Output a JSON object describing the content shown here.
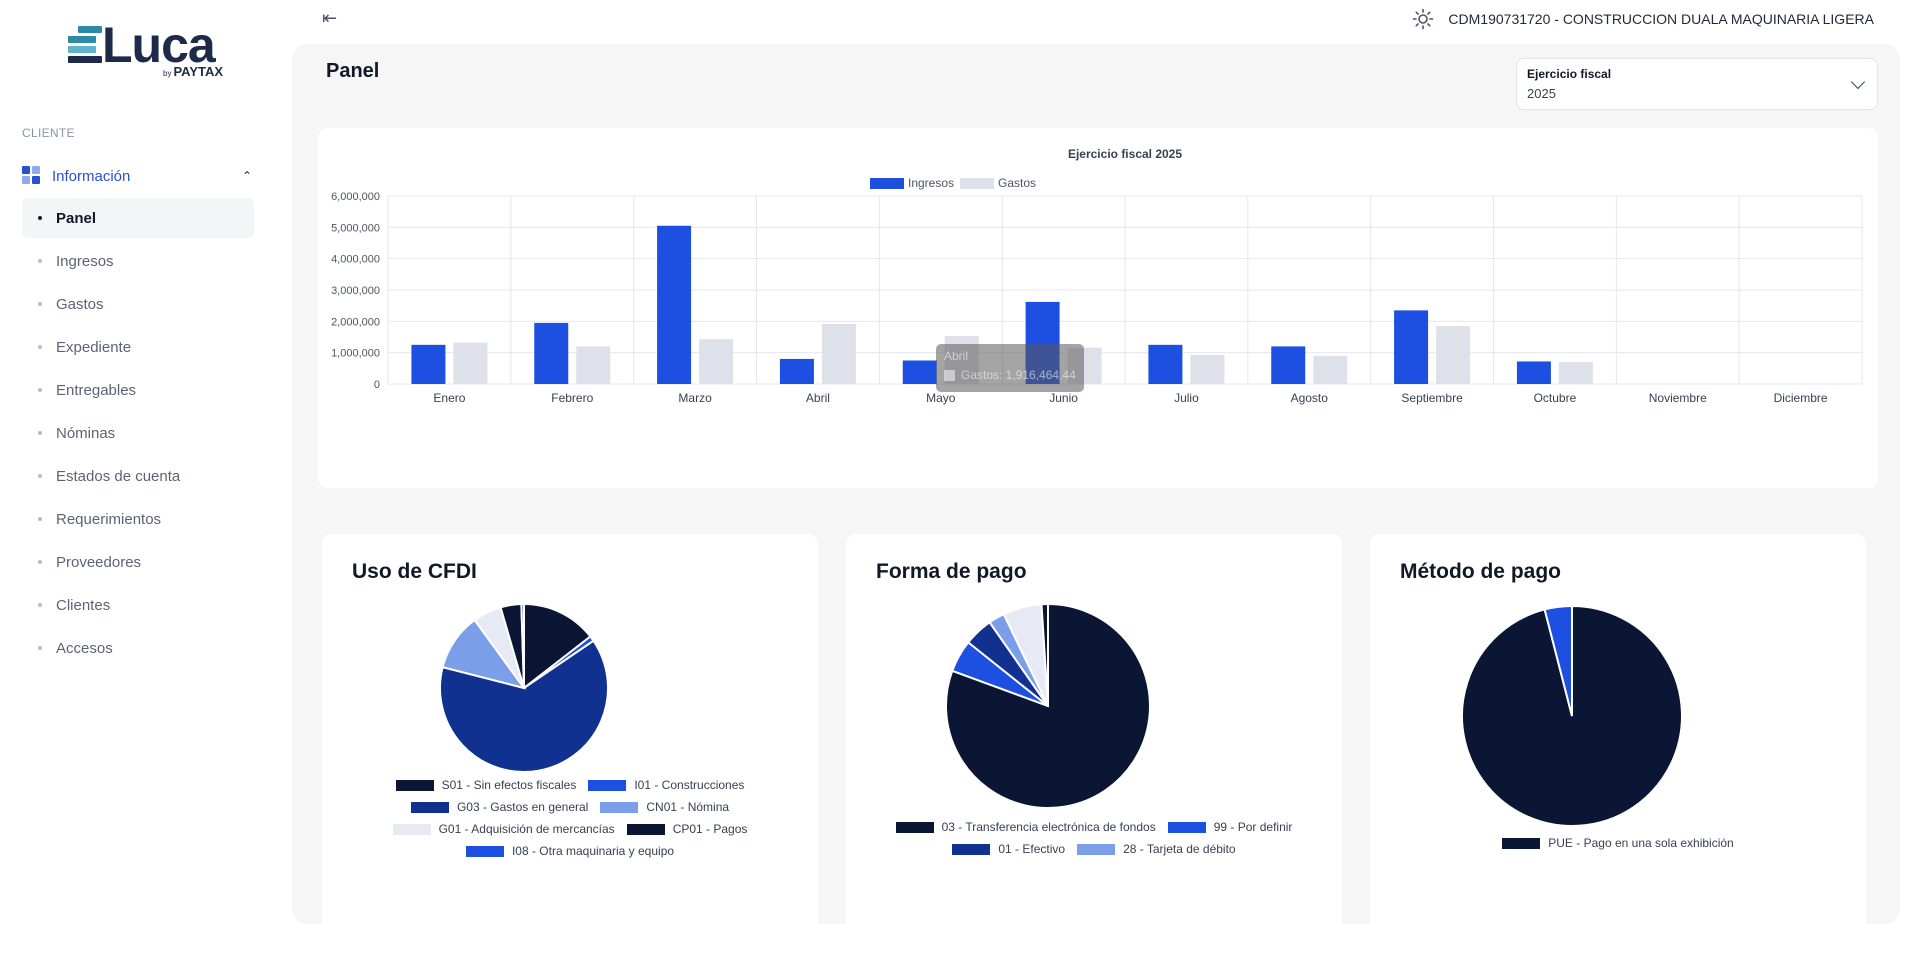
{
  "app": {
    "brand": "Luca",
    "brand_by": "by",
    "brand_sub": "PAYTAX"
  },
  "sidebar": {
    "section_label": "CLIENTE",
    "group_label": "Información",
    "items": [
      {
        "label": "Panel",
        "active": true
      },
      {
        "label": "Ingresos",
        "active": false
      },
      {
        "label": "Gastos",
        "active": false
      },
      {
        "label": "Expediente",
        "active": false
      },
      {
        "label": "Entregables",
        "active": false
      },
      {
        "label": "Nóminas",
        "active": false
      },
      {
        "label": "Estados de cuenta",
        "active": false
      },
      {
        "label": "Requerimientos",
        "active": false
      },
      {
        "label": "Proveedores",
        "active": false
      },
      {
        "label": "Clientes",
        "active": false
      },
      {
        "label": "Accesos",
        "active": false
      }
    ]
  },
  "topbar": {
    "collapse_icon": "arrow-left-bar-icon",
    "theme_icon": "sun-icon",
    "company": "CDM190731720 - CONSTRUCCION DUALA MAQUINARIA LIGERA"
  },
  "page": {
    "title": "Panel"
  },
  "fiscal_select": {
    "label": "Ejercicio fiscal",
    "value": "2025"
  },
  "tooltip": {
    "title": "Abril",
    "line": "Gastos: 1,916,464.44"
  },
  "colors": {
    "ingresos": "#1d4fe0",
    "gastos": "#dfe1ea",
    "navy": "#0b1634",
    "darkblue": "#10318f",
    "midblue": "#1d4fe0",
    "lightblue": "#7b9ee8",
    "pale": "#e7eaf4"
  },
  "chart_data": [
    {
      "type": "bar",
      "title": "Ejercicio fiscal 2025",
      "categories": [
        "Enero",
        "Febrero",
        "Marzo",
        "Abril",
        "Mayo",
        "Junio",
        "Julio",
        "Agosto",
        "Septiembre",
        "Octubre",
        "Noviembre",
        "Diciembre"
      ],
      "series": [
        {
          "name": "Ingresos",
          "values": [
            1250000,
            1950000,
            5050000,
            800000,
            750000,
            2620000,
            1250000,
            1200000,
            2350000,
            720000,
            0,
            0
          ]
        },
        {
          "name": "Gastos",
          "values": [
            1320000,
            1200000,
            1430000,
            1916464.44,
            1530000,
            1160000,
            930000,
            900000,
            1850000,
            700000,
            0,
            0
          ]
        }
      ],
      "yticks": [
        "6,000,000",
        "5,000,000",
        "4,000,000",
        "3,000,000",
        "2,000,000",
        "1,000,000",
        "0"
      ],
      "ylim": [
        0,
        6000000
      ],
      "grid": true,
      "legend": "top-center"
    },
    {
      "type": "pie",
      "title": "Uso de CFDI",
      "labels": [
        "S01 - Sin efectos fiscales",
        "I01 - Construcciones",
        "G03 - Gastos en general",
        "CN01 - Nómina",
        "G01 - Adquisición de mercancías",
        "CP01 - Pagos",
        "I08 - Otra maquinaria y equipo"
      ],
      "values": [
        14.5,
        1,
        63.5,
        11,
        5.5,
        4,
        0.5
      ],
      "legend": "bottom"
    },
    {
      "type": "pie",
      "title": "Forma de pago",
      "labels": [
        "03 - Transferencia electrónica de fondos",
        "99 - Por definir",
        "01 - Efectivo",
        "28 - Tarjeta de débito",
        "",
        ""
      ],
      "values": [
        79,
        5,
        4.5,
        2.5,
        6,
        1
      ],
      "legend": "bottom"
    },
    {
      "type": "pie",
      "title": "Método de pago",
      "labels": [
        "PUE - Pago en una sola exhibición",
        ""
      ],
      "values": [
        96,
        4
      ],
      "legend": "bottom"
    }
  ]
}
